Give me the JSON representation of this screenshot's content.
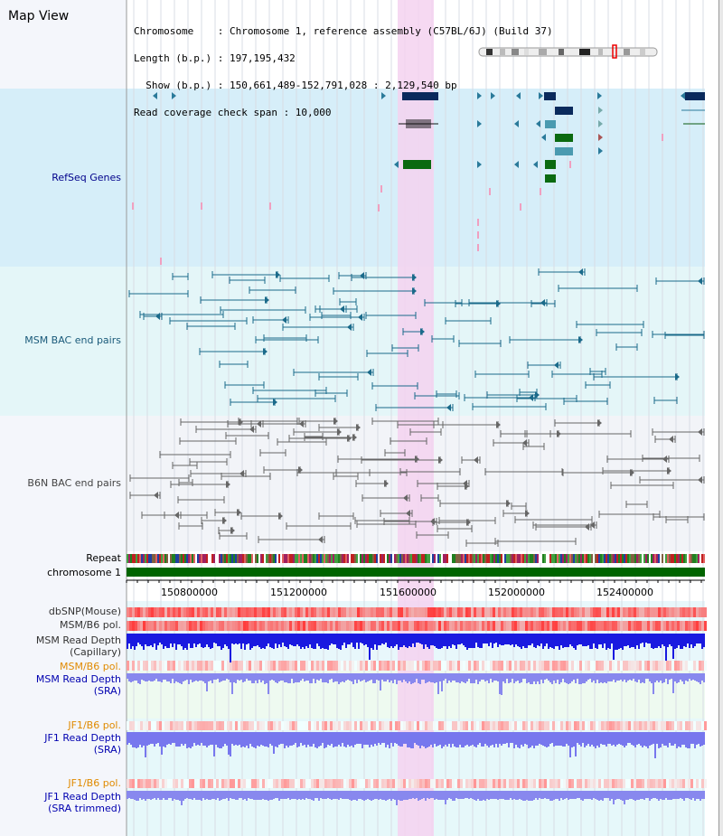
{
  "header": {
    "title": "Map View",
    "info_lines": [
      "Chromosome    : Chromosome 1, reference assembly (C57BL/6J) (Build 37)",
      "Length (b.p.) : 197,195,432",
      "  Show (b.p.) : 150,661,489-152,791,028 : 2,129,540 bp",
      "Read coverage check span : 10,000"
    ]
  },
  "tracks": {
    "refseq": {
      "label": "RefSeq Genes",
      "color": "#00008b"
    },
    "msm_bac": {
      "label": "MSM BAC end pairs",
      "color": "#1a5a7a"
    },
    "b6n_bac": {
      "label": "B6N BAC end pairs",
      "color": "#444444"
    },
    "repeat": {
      "label": "Repeat"
    },
    "chromosome": {
      "label": "chromosome 1"
    },
    "dbsnp": {
      "label": "dbSNP(Mouse)"
    },
    "msm_b6_pol": {
      "label": "MSM/B6 pol."
    },
    "msm_depth_cap": {
      "label_line1": "MSM Read Depth",
      "label_line2": "(Capillary)"
    },
    "msm_b6_pol2": {
      "label": "MSM/B6 pol.",
      "color": "#e08a00"
    },
    "msm_depth_sra": {
      "label_line1": "MSM Read Depth",
      "label_line2": "(SRA)",
      "color": "#0000b0"
    },
    "jf1_b6_pol": {
      "label": "JF1/B6 pol.",
      "color": "#e08a00"
    },
    "jf1_depth_sra": {
      "label_line1": "JF1 Read Depth",
      "label_line2": "(SRA)",
      "color": "#0000b0"
    },
    "jf1_b6_pol2": {
      "label": "JF1/B6 pol.",
      "color": "#e08a00"
    },
    "jf1_depth_trim": {
      "label_line1": "JF1 Read Depth",
      "label_line2": "(SRA trimmed)",
      "color": "#0000b0"
    }
  },
  "axis": {
    "ticks": [
      "150800000",
      "151200000",
      "151600000",
      "152000000",
      "152400000"
    ]
  },
  "colors": {
    "refseq_bg": "#d6eef9",
    "msm_bg": "#e4f6f8",
    "b6n_bg": "#f2f4f8",
    "highlight": "#f5d2f0",
    "gene_dark": "#0a2a5c",
    "gene_green": "#0a6a10",
    "chromosome_bar": "#006400"
  }
}
